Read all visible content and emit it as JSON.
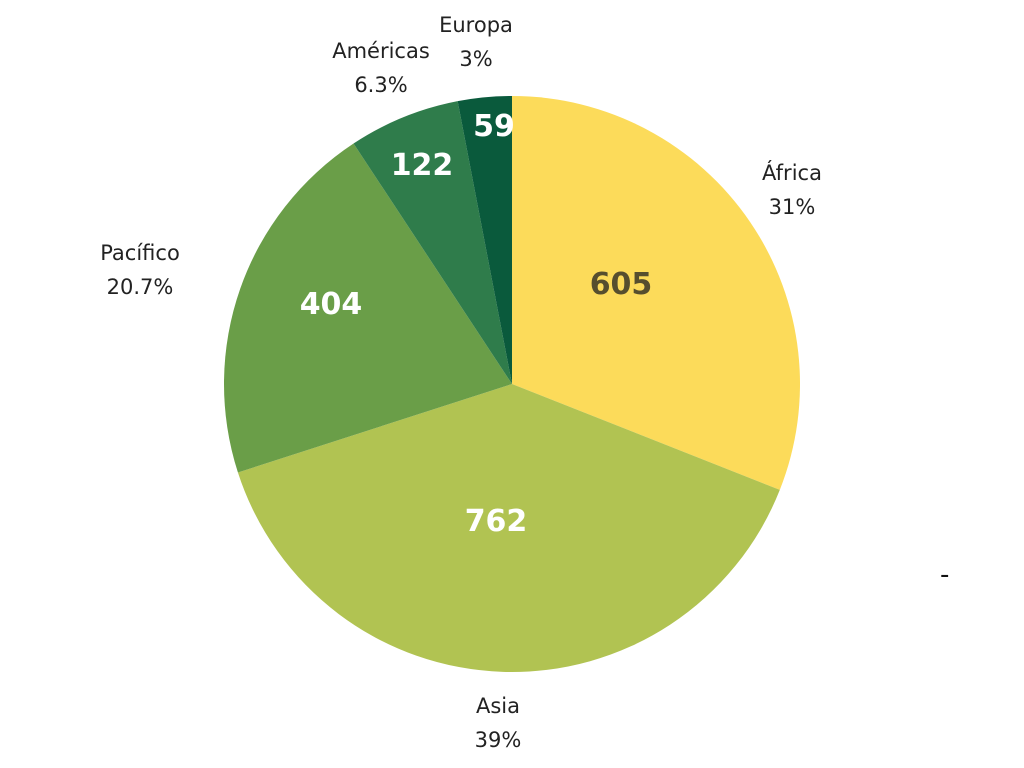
{
  "chart_data": {
    "type": "pie",
    "title": "",
    "start": "top",
    "direction": "clockwise",
    "slices": [
      {
        "label": "África",
        "value": 605,
        "percent": "31%",
        "color": "#FCDB5A",
        "value_color": "#564E2E"
      },
      {
        "label": "Asia",
        "value": 762,
        "percent": "39%",
        "color": "#B1C352",
        "value_color": "#FFFFFF"
      },
      {
        "label": "Pacífico",
        "value": 404,
        "percent": "20.7%",
        "color": "#6A9E48",
        "value_color": "#FFFFFF"
      },
      {
        "label": "Américas",
        "value": 122,
        "percent": "6.3%",
        "color": "#2F7C4B",
        "value_color": "#FFFFFF"
      },
      {
        "label": "Europa",
        "value": 59,
        "percent": "3%",
        "color": "#0A5A3C",
        "value_color": "#FFFFFF"
      }
    ]
  },
  "stray_mark": "-"
}
